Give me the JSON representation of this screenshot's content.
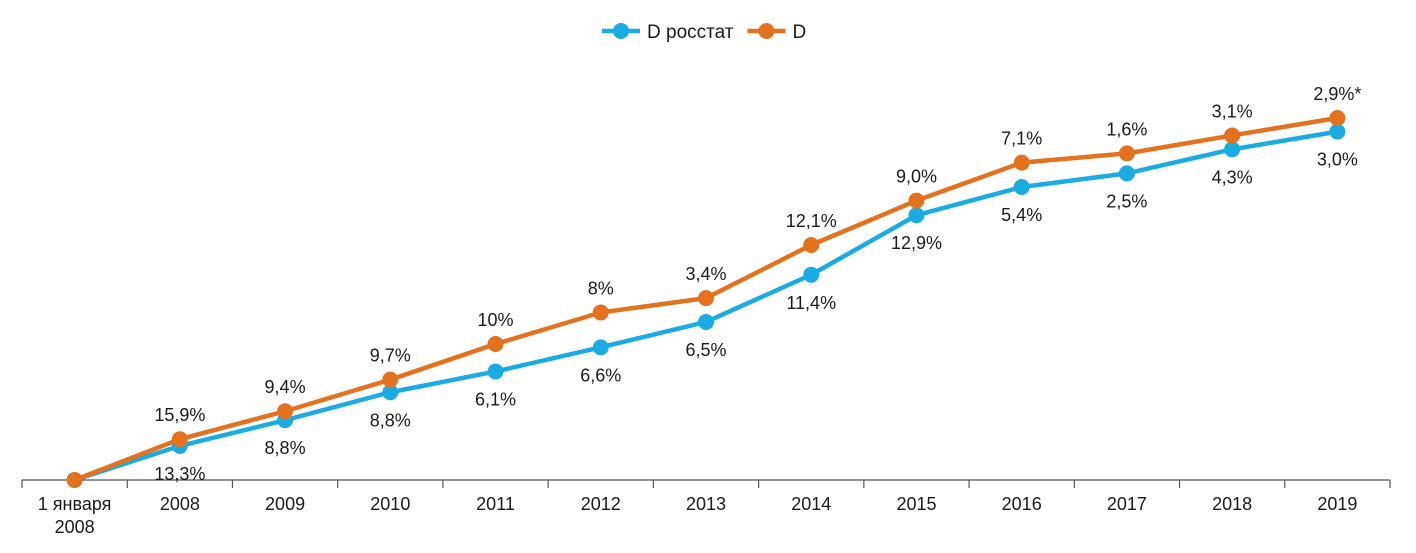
{
  "chart_data": {
    "type": "line",
    "categories": [
      "1 января 2008",
      "2008",
      "2009",
      "2010",
      "2011",
      "2012",
      "2013",
      "2014",
      "2015",
      "2016",
      "2017",
      "2018",
      "2019"
    ],
    "series": [
      {
        "name": "D росстат",
        "color": "#1aabe2",
        "values": [
          100,
          113.3,
          123.3,
          134.2,
          142.3,
          151.7,
          161.6,
          180.0,
          203.2,
          214.2,
          219.5,
          228.9,
          235.8
        ],
        "point_labels": [
          "",
          "13,3%",
          "8,8%",
          "8,8%",
          "6,1%",
          "6,6%",
          "6,5%",
          "11,4%",
          "12,9%",
          "5,4%",
          "2,5%",
          "4,3%",
          "3,0%"
        ]
      },
      {
        "name": "D",
        "color": "#e3711e",
        "values": [
          100,
          115.9,
          126.8,
          139.1,
          153.0,
          165.3,
          170.9,
          191.6,
          208.9,
          223.7,
          227.3,
          234.3,
          241.1
        ],
        "point_labels": [
          "",
          "15,9%",
          "9,4%",
          "9,7%",
          "10%",
          "8%",
          "3,4%",
          "12,1%",
          "9,0%",
          "7,1%",
          "1,6%",
          "3,1%",
          "2,9%*"
        ]
      }
    ],
    "ylim": [
      100,
      241.1
    ],
    "grid": false,
    "legend": "top-center",
    "xlabel": "",
    "ylabel": "",
    "title": ""
  }
}
